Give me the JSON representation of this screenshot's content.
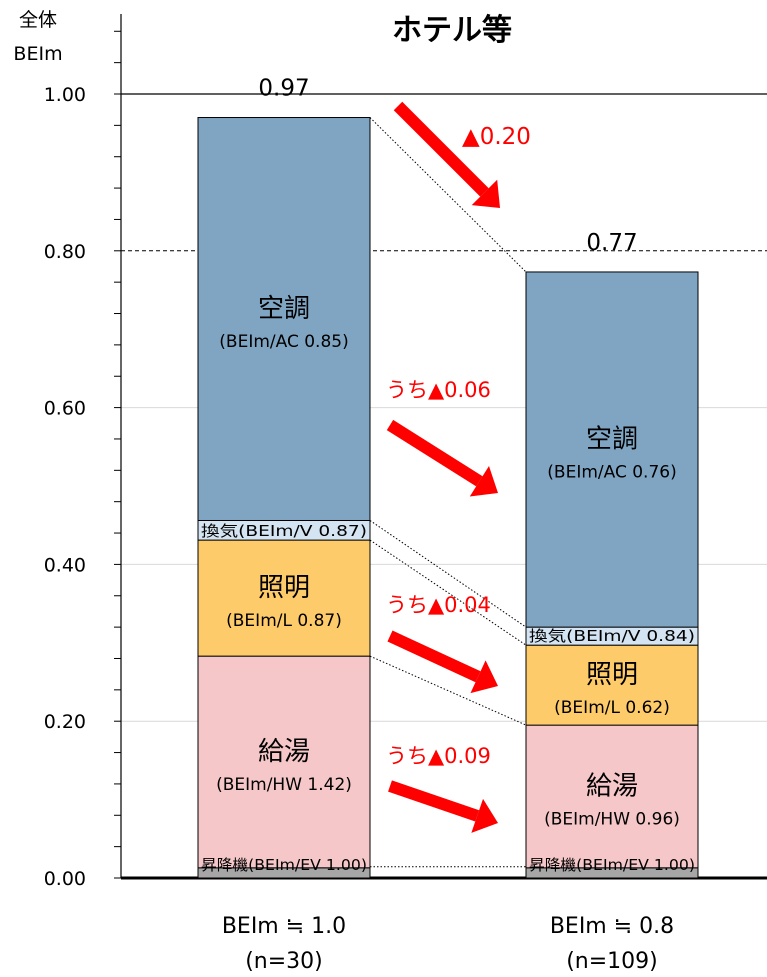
{
  "chart_data": {
    "type": "bar",
    "stacked": true,
    "title": "ホテル等",
    "ylabel_line1": "全体",
    "ylabel_line2": "BEIm",
    "ylim": [
      0,
      1.0
    ],
    "ytick_labels": [
      "0.00",
      "0.20",
      "0.40",
      "0.60",
      "0.80",
      "1.00"
    ],
    "yticks": [
      0,
      0.2,
      0.4,
      0.6,
      0.8,
      1.0
    ],
    "grid": "horizontal",
    "categories": [
      {
        "label": "BEIm ≒ 1.0",
        "sublabel": "(n=30)",
        "total_label": "0.97",
        "total": 0.97
      },
      {
        "label": "BEIm ≒ 0.8",
        "sublabel": "(n=109)",
        "total_label": "0.77",
        "total": 0.773
      }
    ],
    "series": [
      {
        "key": "ev",
        "name": "昇降機",
        "color": "#a6a6a6",
        "values": [
          0.013,
          0.013
        ],
        "labels": [
          "昇降機(BEIm/EV 1.00)",
          "昇降機(BEIm/EV 1.00)"
        ]
      },
      {
        "key": "hw",
        "name": "給湯",
        "color": "#f6c7c8",
        "values": [
          0.27,
          0.182
        ],
        "labels_main": [
          "給湯",
          "給湯"
        ],
        "labels_sub": [
          "(BEIm/HW 1.42)",
          "(BEIm/HW 0.96)"
        ]
      },
      {
        "key": "l",
        "name": "照明",
        "color": "#fecb6a",
        "values": [
          0.148,
          0.102
        ],
        "labels_main": [
          "照明",
          "照明"
        ],
        "labels_sub": [
          "(BEIm/L 0.87)",
          "(BEIm/L 0.62)"
        ]
      },
      {
        "key": "v",
        "name": "換気",
        "color": "#d4e4f2",
        "values": [
          0.025,
          0.023
        ],
        "labels": [
          "換気(BEIm/V 0.87)",
          "換気(BEIm/V 0.84)"
        ]
      },
      {
        "key": "ac",
        "name": "空調",
        "color": "#7fa5c3",
        "values": [
          0.514,
          0.453
        ],
        "labels_main": [
          "空調",
          "空調"
        ],
        "labels_sub": [
          "(BEIm/AC 0.85)",
          "(BEIm/AC 0.76)"
        ]
      }
    ],
    "annotations": {
      "total_reduction": "▲0.20",
      "ac_reduction": "うち▲0.06",
      "l_reduction": "うち▲0.04",
      "hw_reduction": "うち▲0.09"
    },
    "accent_color": "#ff0000"
  }
}
